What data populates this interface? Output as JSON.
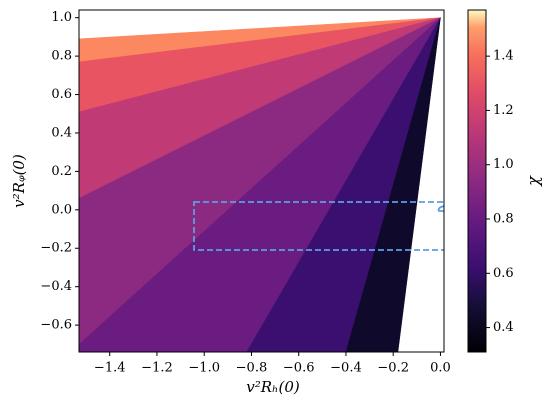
{
  "chart_data": {
    "type": "contourf",
    "xlabel": "v²Rₕ(0)",
    "ylabel": "v²Rᵩ(0)",
    "colorbar_label": "χ",
    "xlim": [
      -1.53,
      0.015
    ],
    "ylim": [
      -0.74,
      1.04
    ],
    "xticks": [
      {
        "value": -1.4,
        "label": "−1.4"
      },
      {
        "value": -1.2,
        "label": "−1.2"
      },
      {
        "value": -1.0,
        "label": "−1.0"
      },
      {
        "value": -0.8,
        "label": "−0.8"
      },
      {
        "value": -0.6,
        "label": "−0.6"
      },
      {
        "value": -0.4,
        "label": "−0.4"
      },
      {
        "value": -0.2,
        "label": "−0.2"
      },
      {
        "value": 0,
        "label": "0.0"
      }
    ],
    "yticks": [
      {
        "value": -0.6,
        "label": "−0.6"
      },
      {
        "value": -0.4,
        "label": "−0.4"
      },
      {
        "value": -0.2,
        "label": "−0.2"
      },
      {
        "value": 0,
        "label": "0.0"
      },
      0.2,
      0.4,
      0.6,
      0.8,
      {
        "value": 1,
        "label": "1.0"
      }
    ],
    "clim": [
      0.31,
      1.57
    ],
    "cticks": [
      0.4,
      0.6,
      0.8,
      {
        "value": 1,
        "label": "1.0"
      },
      1.2,
      1.4
    ],
    "bands": [
      {
        "value": 1.35,
        "color": "#fb8861",
        "x": [
          0,
          -1.53,
          -1.53
        ],
        "y": [
          1,
          0.89,
          0.77
        ]
      },
      {
        "value": 1.15,
        "color": "#e95462",
        "x": [
          0,
          -1.53,
          -1.53
        ],
        "y": [
          1,
          0.77,
          0.51
        ]
      },
      {
        "value": 0.95,
        "color": "#c03a76",
        "x": [
          0,
          -1.53,
          -1.53
        ],
        "y": [
          1,
          0.51,
          0.06
        ]
      },
      {
        "value": 0.85,
        "color": "#8c2981",
        "x": [
          0,
          -1.53,
          -1.53
        ],
        "y": [
          1,
          0.06,
          -0.7
        ]
      },
      {
        "value": 0.7,
        "color": "#6a1c81",
        "x": [
          0,
          -1.53,
          -1.53,
          -0.82
        ],
        "y": [
          1,
          -0.7,
          -0.74,
          -0.74
        ]
      },
      {
        "value": 0.5,
        "color": "#3b0f70",
        "x": [
          0,
          -0.82,
          -0.4
        ],
        "y": [
          1,
          -0.74,
          -0.74
        ]
      },
      {
        "value": 0.35,
        "color": "#0f0a2c",
        "x": [
          0,
          -0.4,
          -0.18
        ],
        "y": [
          1,
          -0.74,
          -0.74
        ]
      }
    ]
  }
}
